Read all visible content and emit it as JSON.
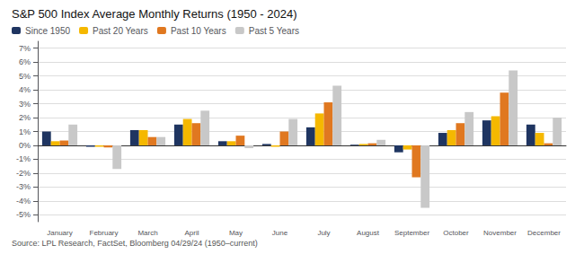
{
  "chart_data": {
    "type": "bar",
    "title": "S&P 500 Index Average Monthly Returns (1950 - 2024)",
    "subtitle": "Source: LPL Research, FactSet, Bloomberg 04/29/24 (1950–current)",
    "categories": [
      "January",
      "February",
      "March",
      "April",
      "May",
      "June",
      "July",
      "August",
      "September",
      "October",
      "November",
      "December"
    ],
    "series": [
      {
        "name": "Since 1950",
        "color": "#1f3561",
        "values": [
          1.0,
          -0.1,
          1.1,
          1.5,
          0.3,
          0.1,
          1.3,
          0.05,
          -0.5,
          0.9,
          1.8,
          1.5
        ]
      },
      {
        "name": "Past 20 Years",
        "color": "#f5b800",
        "values": [
          0.3,
          -0.1,
          1.1,
          1.9,
          0.3,
          -0.1,
          2.3,
          0.1,
          -0.3,
          1.1,
          2.1,
          0.9
        ]
      },
      {
        "name": "Past 10 Years",
        "color": "#e07820",
        "values": [
          0.35,
          -0.15,
          0.6,
          1.6,
          0.7,
          1.0,
          3.1,
          0.15,
          -2.3,
          1.6,
          3.8,
          0.15
        ]
      },
      {
        "name": "Past 5 Years",
        "color": "#c8c8c8",
        "values": [
          1.5,
          -1.7,
          0.6,
          2.5,
          -0.2,
          1.9,
          4.3,
          0.4,
          -4.5,
          2.4,
          5.4,
          2.0
        ]
      }
    ],
    "ylim": [
      -5.5,
      7.5
    ],
    "yticks": [
      {
        "value": -5,
        "label": "-5%"
      },
      {
        "value": -4,
        "label": "-4%"
      },
      {
        "value": -3,
        "label": "-3%"
      },
      {
        "value": -2,
        "label": "-2%"
      },
      {
        "value": -1,
        "label": "-1%"
      },
      {
        "value": 0,
        "label": "0%"
      },
      {
        "value": 1,
        "label": "1%"
      },
      {
        "value": 2,
        "label": "2%"
      },
      {
        "value": 3,
        "label": "3%"
      },
      {
        "value": 4,
        "label": "4%"
      },
      {
        "value": 5,
        "label": "5%"
      },
      {
        "value": 6,
        "label": "6%"
      },
      {
        "value": 7,
        "label": "7%"
      }
    ],
    "grid": true,
    "legend": "upper left"
  }
}
